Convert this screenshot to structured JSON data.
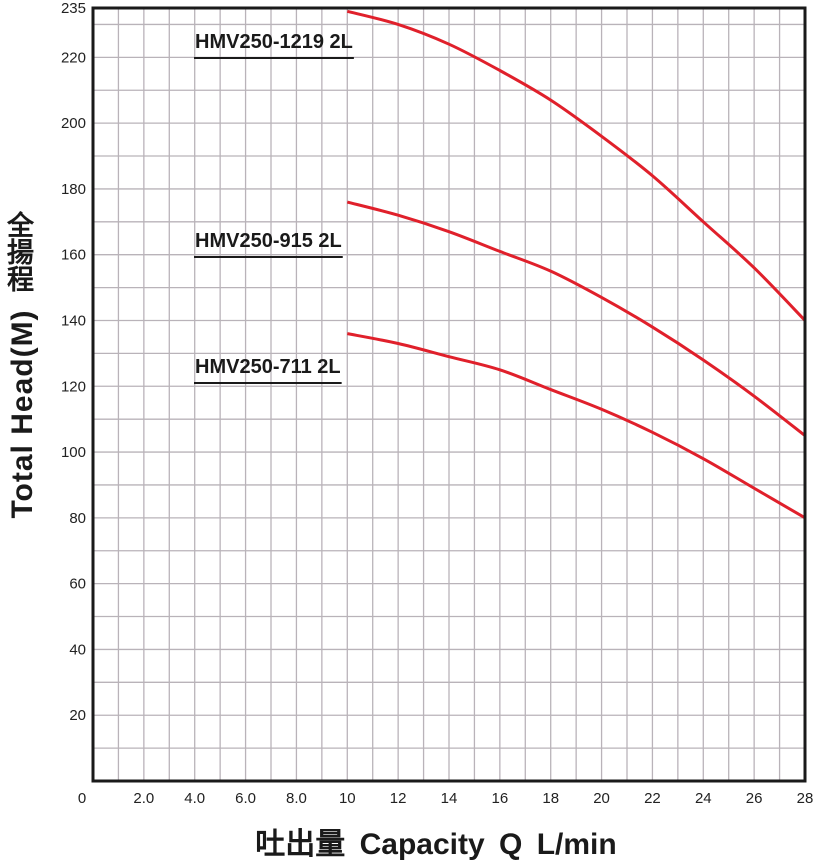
{
  "chart_data": {
    "type": "line",
    "title": "",
    "xlabel": "吐出量 Capacity Q L/min",
    "ylabel": "Total Head(M)",
    "ylabel_cjk": "全揚程",
    "xlim": [
      0,
      28
    ],
    "ylim": [
      0,
      235
    ],
    "x_ticks": [
      {
        "value": 0,
        "label": "0"
      },
      {
        "value": 2,
        "label": "2.0"
      },
      {
        "value": 4,
        "label": "4.0"
      },
      {
        "value": 6,
        "label": "6.0"
      },
      {
        "value": 8,
        "label": "8.0"
      },
      {
        "value": 10,
        "label": "10"
      },
      {
        "value": 12,
        "label": "12"
      },
      {
        "value": 14,
        "label": "14"
      },
      {
        "value": 16,
        "label": "16"
      },
      {
        "value": 18,
        "label": "18"
      },
      {
        "value": 20,
        "label": "20"
      },
      {
        "value": 22,
        "label": "22"
      },
      {
        "value": 24,
        "label": "24"
      },
      {
        "value": 26,
        "label": "26"
      },
      {
        "value": 28,
        "label": "28"
      }
    ],
    "y_ticks": [
      {
        "value": 20,
        "label": "20"
      },
      {
        "value": 40,
        "label": "40"
      },
      {
        "value": 60,
        "label": "60"
      },
      {
        "value": 80,
        "label": "80"
      },
      {
        "value": 100,
        "label": "100"
      },
      {
        "value": 120,
        "label": "120"
      },
      {
        "value": 140,
        "label": "140"
      },
      {
        "value": 160,
        "label": "160"
      },
      {
        "value": 180,
        "label": "180"
      },
      {
        "value": 200,
        "label": "200"
      },
      {
        "value": 220,
        "label": "220"
      },
      {
        "value": 235,
        "label": "235"
      }
    ],
    "grid": true,
    "grid_step_x": 1,
    "grid_step_y": 10,
    "series": [
      {
        "name": "HMV250-1219 2L",
        "color": "#e0202b",
        "x": [
          10,
          12,
          14,
          16,
          18,
          20,
          22,
          24,
          26,
          28
        ],
        "y": [
          234,
          230,
          224,
          216,
          207,
          196,
          184,
          170,
          156,
          140
        ]
      },
      {
        "name": "HMV250-915  2L",
        "color": "#e0202b",
        "x": [
          10,
          12,
          14,
          16,
          18,
          20,
          22,
          24,
          26,
          28
        ],
        "y": [
          176,
          172,
          167,
          161,
          155,
          147,
          138,
          128,
          117,
          105
        ]
      },
      {
        "name": "HMV250-711  2L",
        "color": "#e0202b",
        "x": [
          10,
          12,
          14,
          16,
          18,
          20,
          22,
          24,
          26,
          28
        ],
        "y": [
          136,
          133,
          129,
          125,
          119,
          113,
          106,
          98,
          89,
          80
        ]
      }
    ],
    "colors": {
      "grid": "#b9b3b9",
      "frame": "#1a1a1a",
      "text": "#1a1a1a"
    }
  }
}
